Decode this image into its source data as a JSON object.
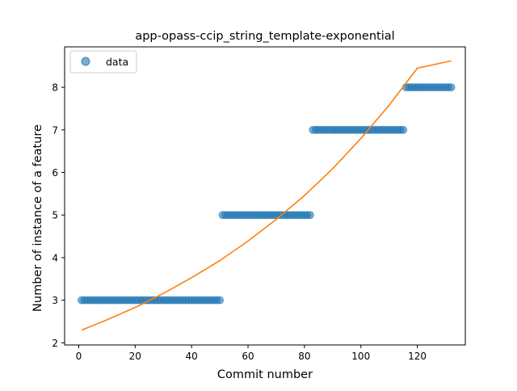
{
  "chart_data": {
    "type": "scatter",
    "title": "app-opass-ccip_string_template-exponential",
    "xlabel": "Commit number",
    "ylabel": "Number of instance of a feature",
    "xlim": [
      -5,
      137
    ],
    "ylim": [
      1.95,
      8.95
    ],
    "xticks": [
      0,
      20,
      40,
      60,
      80,
      100,
      120
    ],
    "yticks": [
      2,
      3,
      4,
      5,
      6,
      7,
      8
    ],
    "grid": false,
    "legend_position": "top-left",
    "series": [
      {
        "name": "data",
        "kind": "scatter",
        "color": "#1f77b4",
        "segments": [
          {
            "x_from": 1,
            "x_to": 50,
            "y": 3
          },
          {
            "x_from": 51,
            "x_to": 82,
            "y": 5
          },
          {
            "x_from": 83,
            "x_to": 115,
            "y": 7
          },
          {
            "x_from": 116,
            "x_to": 132,
            "y": 8
          }
        ]
      },
      {
        "name": "",
        "kind": "line",
        "color": "#ff7f0e",
        "x": [
          1,
          10,
          20,
          30,
          40,
          50,
          60,
          70,
          80,
          90,
          100,
          110,
          120,
          132
        ],
        "y": [
          2.3,
          2.54,
          2.83,
          3.16,
          3.53,
          3.93,
          4.39,
          4.9,
          5.46,
          6.09,
          6.8,
          7.58,
          8.45,
          8.62
        ]
      }
    ]
  }
}
